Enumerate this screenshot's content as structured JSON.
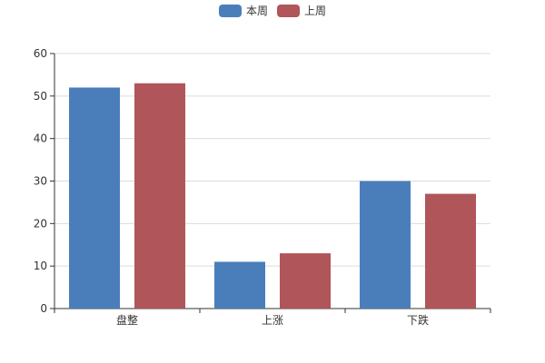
{
  "chart_data": {
    "type": "bar",
    "categories": [
      "盘整",
      "上涨",
      "下跌"
    ],
    "series": [
      {
        "name": "本周",
        "values": [
          52,
          11,
          30
        ],
        "color": "#4a7ebb"
      },
      {
        "name": "上周",
        "values": [
          53,
          13,
          27
        ],
        "color": "#b0555a"
      }
    ],
    "ylim": [
      0,
      60
    ],
    "yticks": [
      0,
      10,
      20,
      30,
      40,
      50,
      60
    ],
    "grid": true,
    "legend_position": "top-center"
  }
}
